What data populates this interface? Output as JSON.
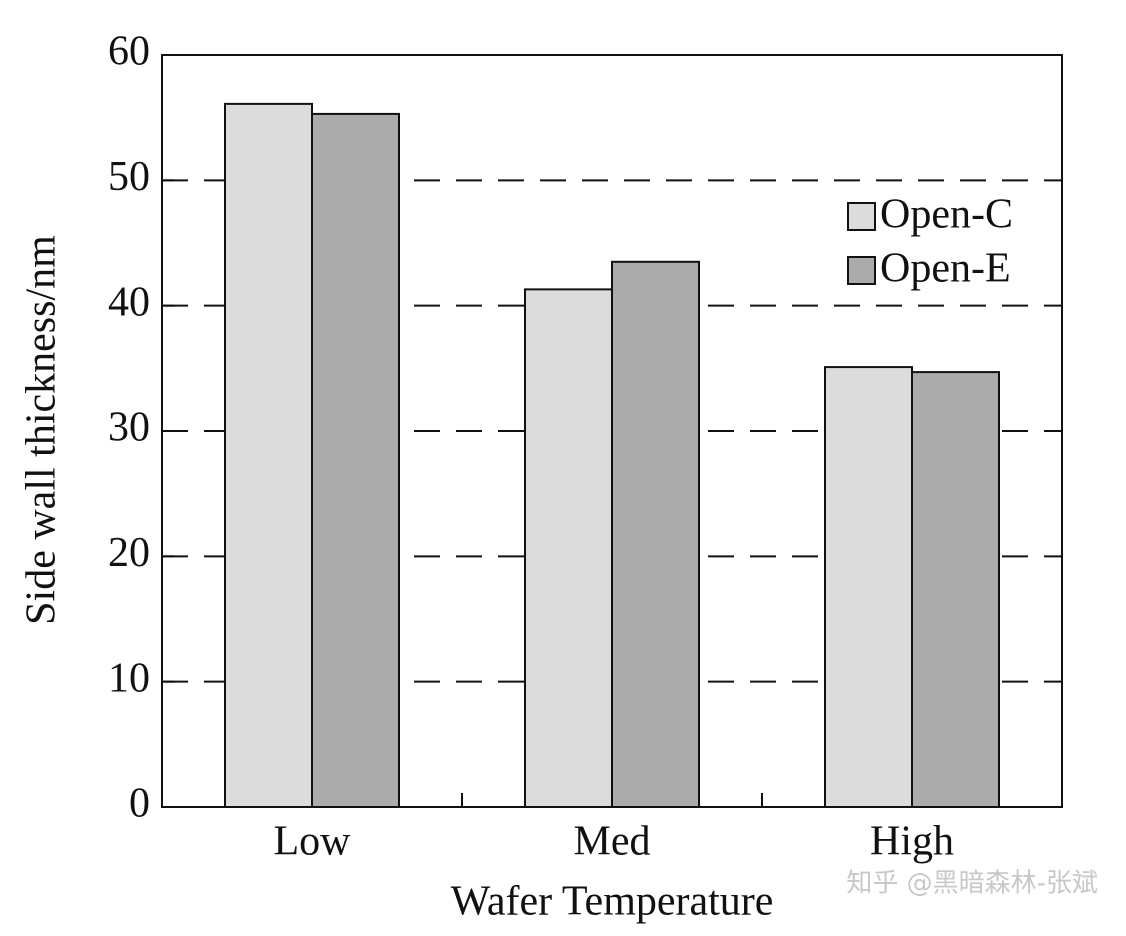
{
  "chart_data": {
    "type": "bar",
    "x_label": "Wafer Temperature",
    "y_label": "Side wall thickness/nm",
    "categories": [
      "Low",
      "Med",
      "High"
    ],
    "series": [
      {
        "name": "Open-C",
        "color": "#dcdcdc",
        "values": [
          56.1,
          41.3,
          35.1
        ]
      },
      {
        "name": "Open-E",
        "color": "#ababab",
        "values": [
          55.3,
          43.5,
          34.7
        ]
      }
    ],
    "ylim": [
      0,
      60
    ],
    "yticks": [
      0,
      10,
      20,
      30,
      40,
      50,
      60
    ],
    "grid": true,
    "legend": "upper right",
    "watermark": "知乎 @黑暗森林-张斌"
  }
}
